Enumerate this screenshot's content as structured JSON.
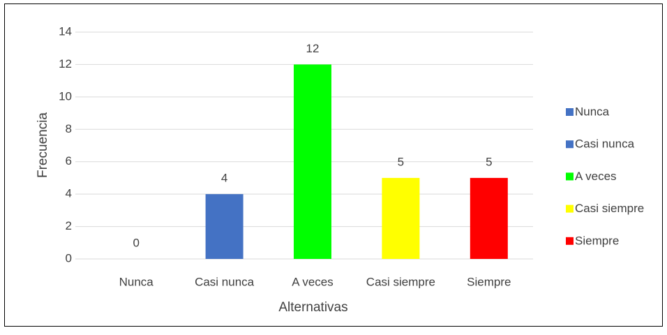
{
  "chart_data": {
    "type": "bar",
    "categories": [
      "Nunca",
      "Casi nunca",
      "A veces",
      "Casi siempre",
      "Siempre"
    ],
    "values": [
      0,
      4,
      12,
      5,
      5
    ],
    "colors": [
      "#4472c4",
      "#4472c4",
      "#00ff00",
      "#ffff00",
      "#ff0000"
    ],
    "xlabel": "Alternativas",
    "ylabel": "Frecuencia",
    "ylim": [
      0,
      14
    ],
    "yticks": [
      0,
      2,
      4,
      6,
      8,
      10,
      12,
      14
    ],
    "grid": true,
    "legend": "right",
    "data_labels": true
  }
}
